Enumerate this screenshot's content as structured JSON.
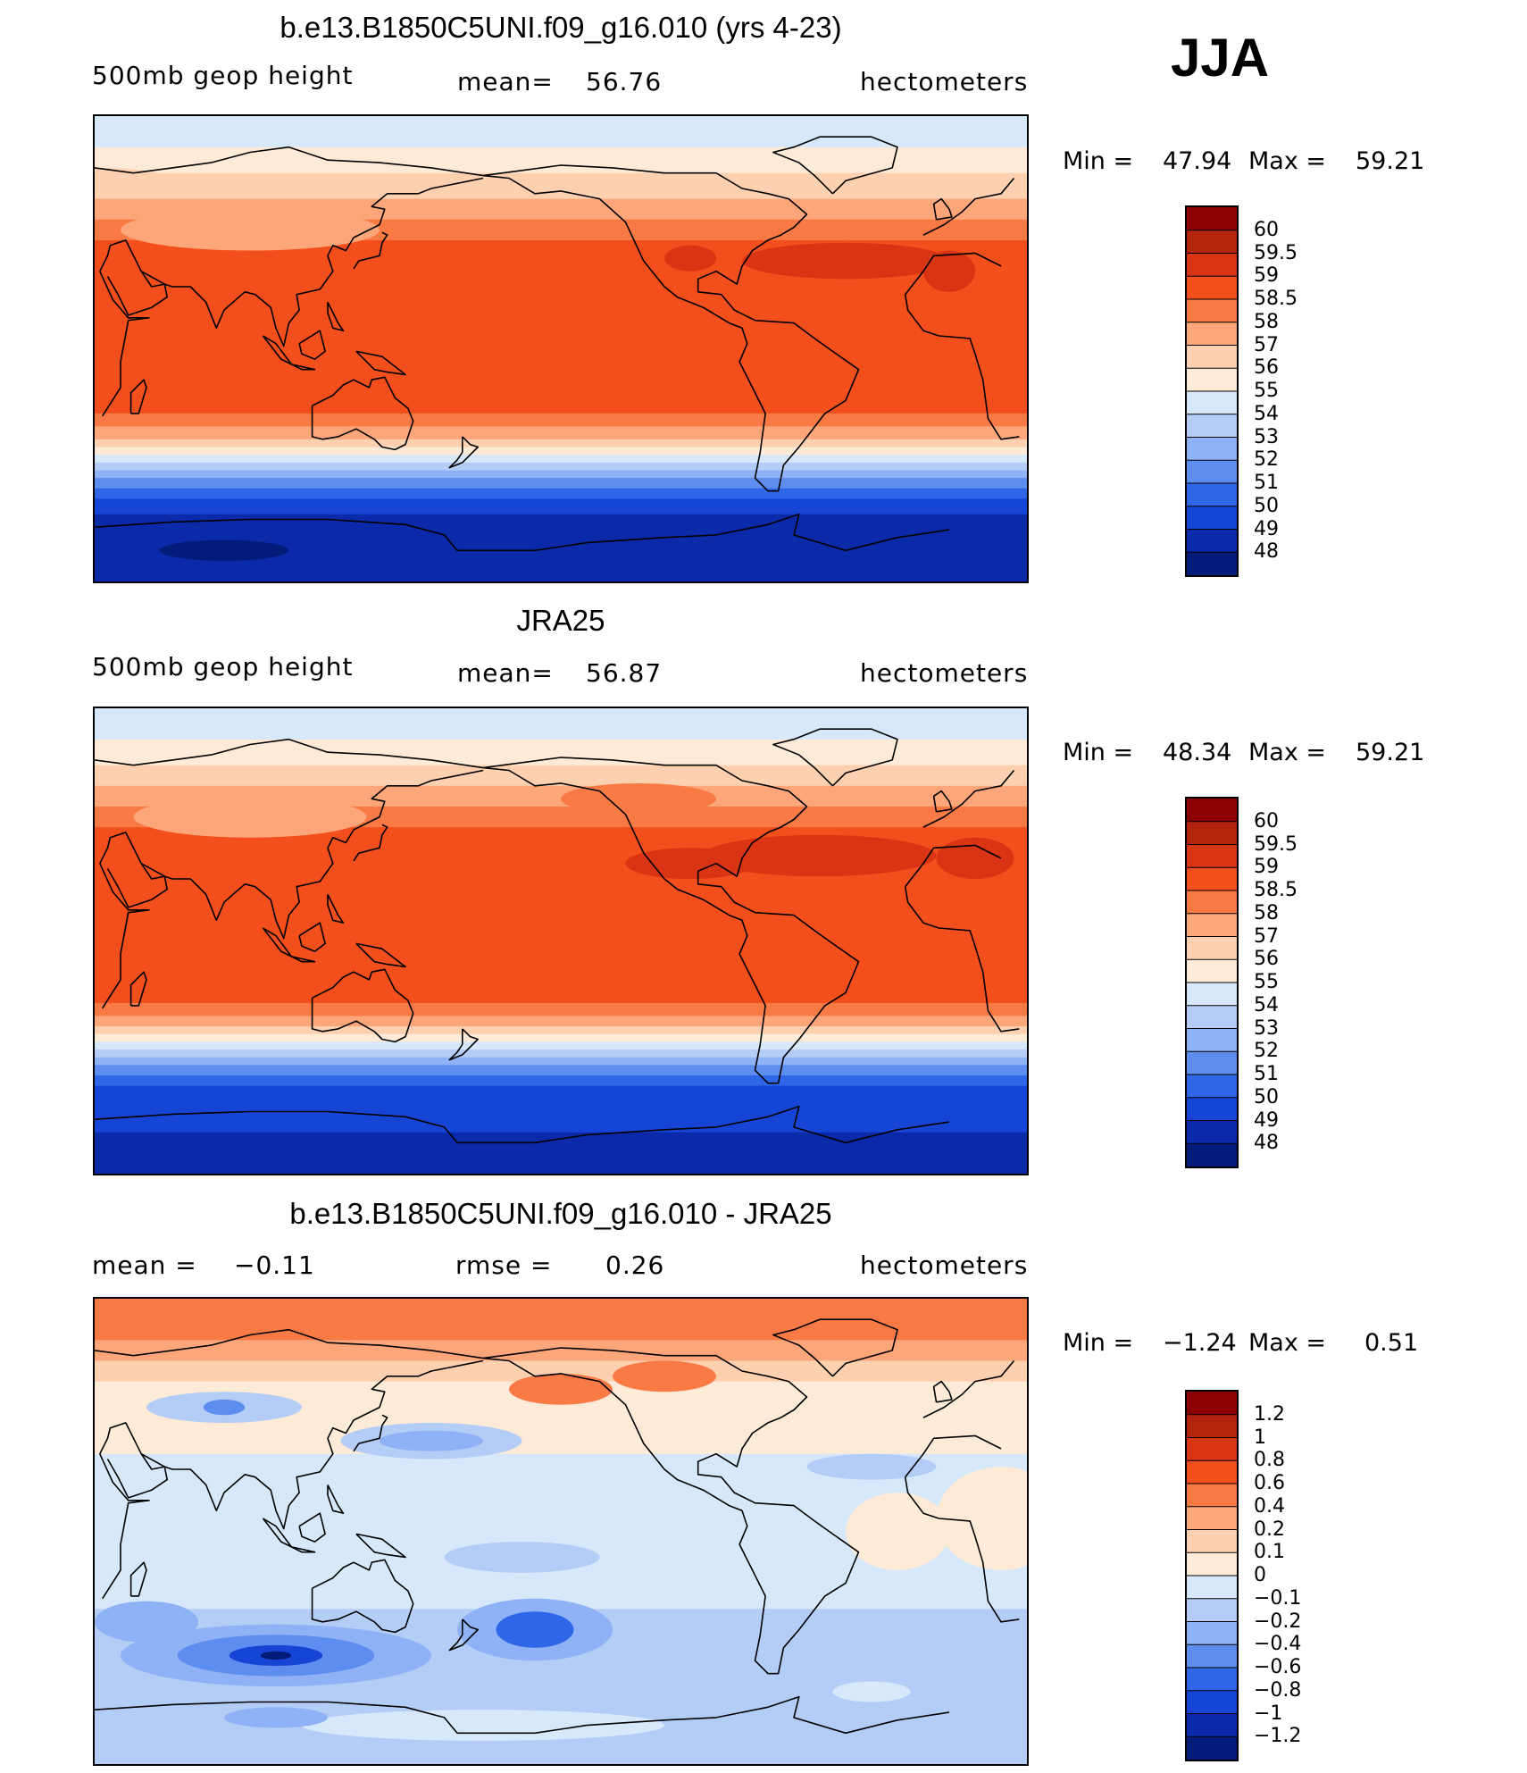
{
  "season": "JJA",
  "panels": [
    {
      "title": "b.e13.B1850C5UNI.f09_g16.010 (yrs 4-23)",
      "left_label": "500mb geop height",
      "center_label": "mean=",
      "center_value": "56.76",
      "units": "hectometers",
      "min_label": "Min =",
      "min_value": "47.94",
      "max_label": "Max =",
      "max_value": "59.21",
      "scale": {
        "labels": [
          "60",
          "59.5",
          "59",
          "58.5",
          "58",
          "57",
          "56",
          "55",
          "54",
          "53",
          "52",
          "51",
          "50",
          "49",
          "48"
        ],
        "colors": [
          "#8b0000",
          "#b3240e",
          "#d93413",
          "#f24f1d",
          "#fa7a45",
          "#fda67a",
          "#fdd0b0",
          "#fdebd8",
          "#d6e8fa",
          "#b4cdf7",
          "#8fb1f5",
          "#5e8df0",
          "#2f66e8",
          "#1645d6",
          "#0b2aaa",
          "#031c7a"
        ]
      },
      "map": {
        "bands": [
          {
            "lat_n": 90,
            "lat_s": 78,
            "color": "#d6e8fa"
          },
          {
            "lat_n": 78,
            "lat_s": 68,
            "color": "#fdebd8"
          },
          {
            "lat_n": 68,
            "lat_s": 58,
            "color": "#fdd0b0"
          },
          {
            "lat_n": 58,
            "lat_s": 50,
            "color": "#fda67a"
          },
          {
            "lat_n": 50,
            "lat_s": 42,
            "color": "#fa7a45"
          },
          {
            "lat_n": 42,
            "lat_s": -25,
            "color": "#f24f1d"
          },
          {
            "lat_n": -25,
            "lat_s": -30,
            "color": "#fa7a45"
          },
          {
            "lat_n": -30,
            "lat_s": -35,
            "color": "#fda67a"
          },
          {
            "lat_n": -35,
            "lat_s": -38,
            "color": "#fdd0b0"
          },
          {
            "lat_n": -38,
            "lat_s": -41,
            "color": "#fdebd8"
          },
          {
            "lat_n": -41,
            "lat_s": -44,
            "color": "#d6e8fa"
          },
          {
            "lat_n": -44,
            "lat_s": -47,
            "color": "#b4cdf7"
          },
          {
            "lat_n": -47,
            "lat_s": -50,
            "color": "#8fb1f5"
          },
          {
            "lat_n": -50,
            "lat_s": -54,
            "color": "#5e8df0"
          },
          {
            "lat_n": -54,
            "lat_s": -58,
            "color": "#2f66e8"
          },
          {
            "lat_n": -58,
            "lat_s": -64,
            "color": "#1645d6"
          },
          {
            "lat_n": -64,
            "lat_s": -90,
            "color": "#0b2aaa"
          }
        ],
        "blobs": [
          {
            "lon": -40,
            "lat": 34,
            "rx": 40,
            "ry": 7,
            "color": "#d93413"
          },
          {
            "lon": 0,
            "lat": 30,
            "rx": 10,
            "ry": 8,
            "color": "#d93413"
          },
          {
            "lon": -100,
            "lat": 35,
            "rx": 10,
            "ry": 5,
            "color": "#d93413"
          },
          {
            "lon": 90,
            "lat": 46,
            "rx": 50,
            "ry": 8,
            "color": "#fda67a"
          },
          {
            "lon": 30,
            "lat": 65,
            "rx": 30,
            "ry": 5,
            "color": "#fdd0b0"
          },
          {
            "lon": 80,
            "lat": -78,
            "rx": 25,
            "ry": 4,
            "color": "#031c7a"
          }
        ]
      }
    },
    {
      "title": "JRA25",
      "left_label": "500mb geop height",
      "center_label": "mean=",
      "center_value": "56.87",
      "units": "hectometers",
      "min_label": "Min =",
      "min_value": "48.34",
      "max_label": "Max =",
      "max_value": "59.21",
      "scale": {
        "labels": [
          "60",
          "59.5",
          "59",
          "58.5",
          "58",
          "57",
          "56",
          "55",
          "54",
          "53",
          "52",
          "51",
          "50",
          "49",
          "48"
        ],
        "colors": [
          "#8b0000",
          "#b3240e",
          "#d93413",
          "#f24f1d",
          "#fa7a45",
          "#fda67a",
          "#fdd0b0",
          "#fdebd8",
          "#d6e8fa",
          "#b4cdf7",
          "#8fb1f5",
          "#5e8df0",
          "#2f66e8",
          "#1645d6",
          "#0b2aaa",
          "#031c7a"
        ]
      },
      "map": {
        "bands": [
          {
            "lat_n": 90,
            "lat_s": 78,
            "color": "#d6e8fa"
          },
          {
            "lat_n": 78,
            "lat_s": 68,
            "color": "#fdebd8"
          },
          {
            "lat_n": 68,
            "lat_s": 60,
            "color": "#fdd0b0"
          },
          {
            "lat_n": 60,
            "lat_s": 52,
            "color": "#fda67a"
          },
          {
            "lat_n": 52,
            "lat_s": 44,
            "color": "#fa7a45"
          },
          {
            "lat_n": 44,
            "lat_s": -24,
            "color": "#f24f1d"
          },
          {
            "lat_n": -24,
            "lat_s": -29,
            "color": "#fa7a45"
          },
          {
            "lat_n": -29,
            "lat_s": -33,
            "color": "#fda67a"
          },
          {
            "lat_n": -33,
            "lat_s": -36,
            "color": "#fdd0b0"
          },
          {
            "lat_n": -36,
            "lat_s": -39,
            "color": "#fdebd8"
          },
          {
            "lat_n": -39,
            "lat_s": -42,
            "color": "#d6e8fa"
          },
          {
            "lat_n": -42,
            "lat_s": -45,
            "color": "#b4cdf7"
          },
          {
            "lat_n": -45,
            "lat_s": -48,
            "color": "#8fb1f5"
          },
          {
            "lat_n": -48,
            "lat_s": -52,
            "color": "#5e8df0"
          },
          {
            "lat_n": -52,
            "lat_s": -56,
            "color": "#2f66e8"
          },
          {
            "lat_n": -56,
            "lat_s": -74,
            "color": "#1645d6"
          },
          {
            "lat_n": -74,
            "lat_s": -90,
            "color": "#0b2aaa"
          }
        ],
        "blobs": [
          {
            "lon": -50,
            "lat": 33,
            "rx": 45,
            "ry": 8,
            "color": "#d93413"
          },
          {
            "lon": -100,
            "lat": 30,
            "rx": 25,
            "ry": 6,
            "color": "#d93413"
          },
          {
            "lon": 10,
            "lat": 32,
            "rx": 15,
            "ry": 8,
            "color": "#d93413"
          },
          {
            "lon": 90,
            "lat": 48,
            "rx": 45,
            "ry": 8,
            "color": "#fda67a"
          },
          {
            "lon": -120,
            "lat": 55,
            "rx": 30,
            "ry": 6,
            "color": "#fa7a45"
          }
        ]
      }
    },
    {
      "title": "b.e13.B1850C5UNI.f09_g16.010 - JRA25",
      "left_label": "mean =",
      "left_value": "−0.11",
      "center_label": "rmse =",
      "center_value": "0.26",
      "units": "hectometers",
      "min_label": "Min =",
      "min_value": "−1.24",
      "max_label": "Max =",
      "max_value": "0.51",
      "scale": {
        "labels": [
          "1.2",
          "1",
          "0.8",
          "0.6",
          "0.4",
          "0.2",
          "0.1",
          "0",
          "−0.1",
          "−0.2",
          "−0.4",
          "−0.6",
          "−0.8",
          "−1",
          "−1.2"
        ],
        "colors": [
          "#8b0000",
          "#b3240e",
          "#d93413",
          "#f24f1d",
          "#fa7a45",
          "#fda67a",
          "#fdd0b0",
          "#fdebd8",
          "#d6e8fa",
          "#b4cdf7",
          "#8fb1f5",
          "#5e8df0",
          "#2f66e8",
          "#1645d6",
          "#0b2aaa",
          "#031c7a"
        ]
      },
      "map": {
        "bands": [
          {
            "lat_n": 90,
            "lat_s": 74,
            "color": "#fa7a45"
          },
          {
            "lat_n": 74,
            "lat_s": 66,
            "color": "#fda67a"
          },
          {
            "lat_n": 66,
            "lat_s": 58,
            "color": "#fdd0b0"
          },
          {
            "lat_n": 58,
            "lat_s": 30,
            "color": "#fdebd8"
          },
          {
            "lat_n": 30,
            "lat_s": -10,
            "color": "#d6e8fa"
          },
          {
            "lat_n": -10,
            "lat_s": -30,
            "color": "#d6e8fa"
          },
          {
            "lat_n": -30,
            "lat_s": -62,
            "color": "#b4cdf7"
          },
          {
            "lat_n": -62,
            "lat_s": -90,
            "color": "#b4cdf7"
          }
        ],
        "blobs": [
          {
            "lon": -150,
            "lat": 55,
            "rx": 20,
            "ry": 6,
            "color": "#fa7a45"
          },
          {
            "lon": -110,
            "lat": 60,
            "rx": 20,
            "ry": 6,
            "color": "#fa7a45"
          },
          {
            "lon": 80,
            "lat": 48,
            "rx": 30,
            "ry": 6,
            "color": "#b4cdf7"
          },
          {
            "lon": 80,
            "lat": 48,
            "rx": 8,
            "ry": 3,
            "color": "#5e8df0"
          },
          {
            "lon": 160,
            "lat": 35,
            "rx": 35,
            "ry": 7,
            "color": "#b4cdf7"
          },
          {
            "lon": 160,
            "lat": 35,
            "rx": 20,
            "ry": 4,
            "color": "#8fb1f5"
          },
          {
            "lon": -30,
            "lat": 25,
            "rx": 25,
            "ry": 5,
            "color": "#b4cdf7"
          },
          {
            "lon": -20,
            "lat": 0,
            "rx": 20,
            "ry": 15,
            "color": "#fdebd8"
          },
          {
            "lon": 20,
            "lat": 5,
            "rx": 25,
            "ry": 20,
            "color": "#fdebd8"
          },
          {
            "lon": 100,
            "lat": -48,
            "rx": 60,
            "ry": 12,
            "color": "#8fb1f5"
          },
          {
            "lon": 100,
            "lat": -48,
            "rx": 38,
            "ry": 8,
            "color": "#5e8df0"
          },
          {
            "lon": 100,
            "lat": -48,
            "rx": 18,
            "ry": 4,
            "color": "#1645d6"
          },
          {
            "lon": 100,
            "lat": -48,
            "rx": 6,
            "ry": 1.6,
            "color": "#031c7a"
          },
          {
            "lon": -160,
            "lat": -38,
            "rx": 30,
            "ry": 12,
            "color": "#8fb1f5"
          },
          {
            "lon": -160,
            "lat": -38,
            "rx": 15,
            "ry": 7,
            "color": "#2f66e8"
          },
          {
            "lon": 50,
            "lat": -35,
            "rx": 20,
            "ry": 8,
            "color": "#8fb1f5"
          },
          {
            "lon": -165,
            "lat": -10,
            "rx": 30,
            "ry": 6,
            "color": "#b4cdf7"
          },
          {
            "lon": 180,
            "lat": -75,
            "rx": 70,
            "ry": 6,
            "color": "#d6e8fa"
          },
          {
            "lon": -30,
            "lat": -62,
            "rx": 15,
            "ry": 4,
            "color": "#d6e8fa"
          },
          {
            "lon": 100,
            "lat": -72,
            "rx": 20,
            "ry": 4,
            "color": "#8fb1f5"
          }
        ]
      }
    }
  ]
}
